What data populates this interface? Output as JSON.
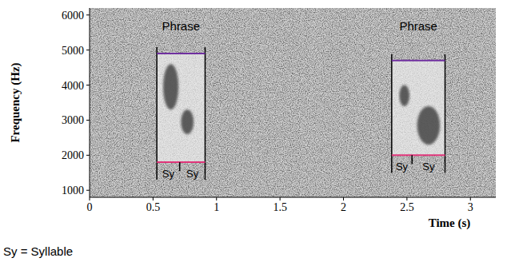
{
  "chart_data": {
    "type": "spectrogram",
    "x_label": "Time (s)",
    "y_label": "Frequency (Hz)",
    "xlim": [
      0,
      3.2
    ],
    "xticks": [
      0,
      0.5,
      1,
      1.5,
      2,
      2.5,
      3
    ],
    "ylim": [
      800,
      6200
    ],
    "yticks": [
      1000,
      2000,
      3000,
      4000,
      5000,
      6000
    ],
    "phrases": [
      {
        "label": "Phrase",
        "start": 0.53,
        "end": 0.91,
        "high": 4900,
        "low": 1800,
        "syllable_boundary": 0.71,
        "syllable_labels": [
          "Sy",
          "Sy"
        ]
      },
      {
        "label": "Phrase",
        "start": 2.38,
        "end": 2.8,
        "high": 4700,
        "low": 2000,
        "syllable_boundary": 2.54,
        "syllable_labels": [
          "Sy",
          "Sy"
        ]
      }
    ],
    "calls": [
      {
        "x": [
          0.58,
          0.7
        ],
        "y": [
          3300,
          4600
        ]
      },
      {
        "x": [
          0.72,
          0.82
        ],
        "y": [
          2600,
          3300
        ]
      },
      {
        "x": [
          2.44,
          2.52
        ],
        "y": [
          3400,
          4000
        ]
      },
      {
        "x": [
          2.58,
          2.76
        ],
        "y": [
          2300,
          3400
        ]
      }
    ],
    "footnote": "Sy = Syllable"
  }
}
